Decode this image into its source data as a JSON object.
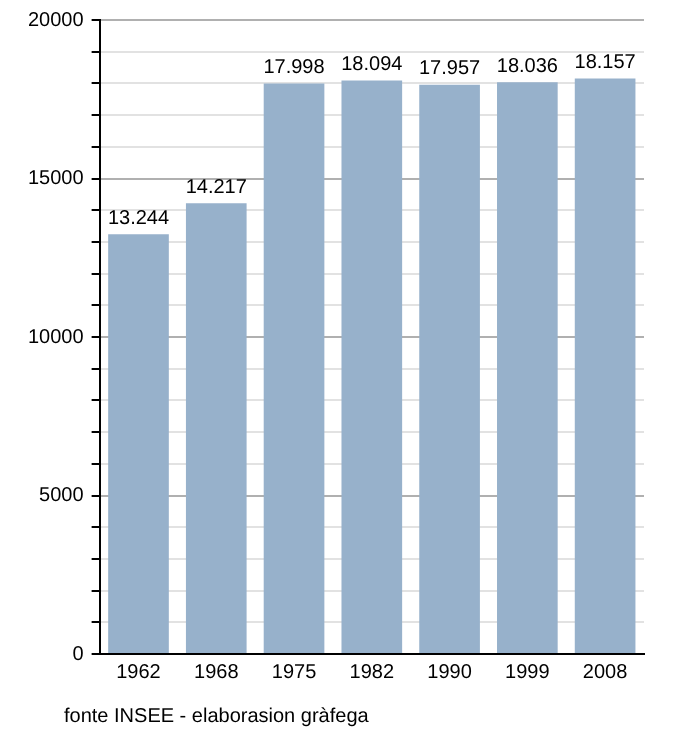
{
  "chart_data": {
    "type": "bar",
    "categories": [
      "1962",
      "1968",
      "1975",
      "1982",
      "1990",
      "1999",
      "2008"
    ],
    "values": [
      13244,
      14217,
      17998,
      18094,
      17957,
      18036,
      18157
    ],
    "value_labels": [
      "13.244",
      "14.217",
      "17.998",
      "18.094",
      "17.957",
      "18.036",
      "18.157"
    ],
    "color": "#97b1cb",
    "ylim": [
      0,
      20000
    ],
    "yticks": [
      0,
      {
        "value": 1000,
        "label": null
      },
      {
        "value": 2000,
        "label": null
      },
      {
        "value": 3000,
        "label": null
      },
      {
        "value": 4000,
        "label": null
      },
      5000,
      {
        "value": 6000,
        "label": null
      },
      {
        "value": 7000,
        "label": null
      },
      {
        "value": 8000,
        "label": null
      },
      {
        "value": 9000,
        "label": null
      },
      10000,
      {
        "value": 11000,
        "label": null
      },
      {
        "value": 12000,
        "label": null
      },
      {
        "value": 13000,
        "label": null
      },
      {
        "value": 14000,
        "label": null
      },
      15000,
      {
        "value": 16000,
        "label": null
      },
      {
        "value": 17000,
        "label": null
      },
      {
        "value": 18000,
        "label": null
      },
      {
        "value": 19000,
        "label": null
      },
      20000
    ],
    "grid": "y",
    "legend": false,
    "annotations": [
      "fonte INSEE - elaborasion gràfega"
    ]
  }
}
